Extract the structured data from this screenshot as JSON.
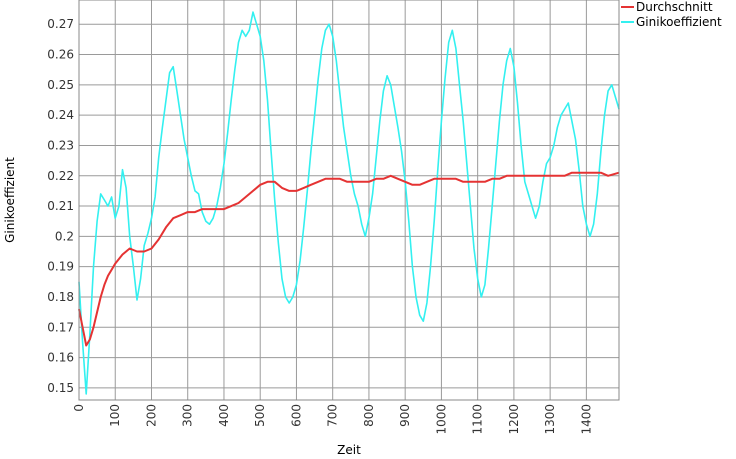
{
  "chart_data": {
    "type": "line",
    "title": "",
    "xlabel": "Zeit",
    "ylabel": "Ginikoeffizient",
    "xlim": [
      0,
      1490
    ],
    "ylim": [
      0.146,
      0.278
    ],
    "grid": true,
    "legend_position": "top-right",
    "x_ticks": [
      "0",
      "100",
      "200",
      "300",
      "400",
      "500",
      "600",
      "700",
      "800",
      "900",
      "1000",
      "1100",
      "1200",
      "1300",
      "1400"
    ],
    "y_ticks": [
      "0.15",
      "0.16",
      "0.17",
      "0.18",
      "0.19",
      "0.2",
      "0.21",
      "0.22",
      "0.23",
      "0.24",
      "0.25",
      "0.26",
      "0.27"
    ],
    "series": [
      {
        "name": "Durchschnitt",
        "color": "#e53333",
        "x": [
          0,
          10,
          20,
          30,
          40,
          50,
          60,
          70,
          80,
          90,
          100,
          120,
          140,
          160,
          180,
          200,
          220,
          240,
          260,
          280,
          300,
          320,
          340,
          360,
          380,
          400,
          420,
          440,
          460,
          480,
          500,
          520,
          540,
          560,
          580,
          600,
          620,
          640,
          660,
          680,
          700,
          720,
          740,
          760,
          780,
          800,
          820,
          840,
          860,
          880,
          900,
          920,
          940,
          960,
          980,
          1000,
          1020,
          1040,
          1060,
          1080,
          1100,
          1120,
          1140,
          1160,
          1180,
          1200,
          1220,
          1240,
          1260,
          1280,
          1300,
          1320,
          1340,
          1360,
          1380,
          1400,
          1420,
          1440,
          1460,
          1490
        ],
        "y": [
          0.176,
          0.17,
          0.164,
          0.166,
          0.17,
          0.175,
          0.18,
          0.184,
          0.187,
          0.189,
          0.191,
          0.194,
          0.196,
          0.195,
          0.195,
          0.196,
          0.199,
          0.203,
          0.206,
          0.207,
          0.208,
          0.208,
          0.209,
          0.209,
          0.209,
          0.209,
          0.21,
          0.211,
          0.213,
          0.215,
          0.217,
          0.218,
          0.218,
          0.216,
          0.215,
          0.215,
          0.216,
          0.217,
          0.218,
          0.219,
          0.219,
          0.219,
          0.218,
          0.218,
          0.218,
          0.218,
          0.219,
          0.219,
          0.22,
          0.219,
          0.218,
          0.217,
          0.217,
          0.218,
          0.219,
          0.219,
          0.219,
          0.219,
          0.218,
          0.218,
          0.218,
          0.218,
          0.219,
          0.219,
          0.22,
          0.22,
          0.22,
          0.22,
          0.22,
          0.22,
          0.22,
          0.22,
          0.22,
          0.221,
          0.221,
          0.221,
          0.221,
          0.221,
          0.22,
          0.221
        ]
      },
      {
        "name": "Ginikoeffizient",
        "color": "#33f0f0",
        "x": [
          0,
          10,
          20,
          30,
          40,
          50,
          60,
          70,
          80,
          90,
          100,
          110,
          120,
          130,
          140,
          150,
          160,
          170,
          180,
          190,
          200,
          210,
          220,
          230,
          240,
          250,
          260,
          270,
          280,
          290,
          300,
          310,
          320,
          330,
          340,
          350,
          360,
          370,
          380,
          390,
          400,
          410,
          420,
          430,
          440,
          450,
          460,
          470,
          480,
          490,
          500,
          510,
          520,
          530,
          540,
          550,
          560,
          570,
          580,
          590,
          600,
          610,
          620,
          630,
          640,
          650,
          660,
          670,
          680,
          690,
          700,
          710,
          720,
          730,
          740,
          750,
          760,
          770,
          780,
          790,
          800,
          810,
          820,
          830,
          840,
          850,
          860,
          870,
          880,
          890,
          900,
          910,
          920,
          930,
          940,
          950,
          960,
          970,
          980,
          990,
          1000,
          1010,
          1020,
          1030,
          1040,
          1050,
          1060,
          1070,
          1080,
          1090,
          1100,
          1110,
          1120,
          1130,
          1140,
          1150,
          1160,
          1170,
          1180,
          1190,
          1200,
          1210,
          1220,
          1230,
          1240,
          1250,
          1260,
          1270,
          1280,
          1290,
          1300,
          1310,
          1320,
          1330,
          1340,
          1350,
          1360,
          1370,
          1380,
          1390,
          1400,
          1410,
          1420,
          1430,
          1440,
          1450,
          1460,
          1470,
          1480,
          1490
        ],
        "y": [
          0.185,
          0.165,
          0.148,
          0.168,
          0.19,
          0.205,
          0.214,
          0.212,
          0.21,
          0.213,
          0.206,
          0.21,
          0.222,
          0.216,
          0.2,
          0.19,
          0.179,
          0.186,
          0.197,
          0.201,
          0.206,
          0.213,
          0.226,
          0.236,
          0.245,
          0.254,
          0.256,
          0.248,
          0.24,
          0.232,
          0.226,
          0.22,
          0.215,
          0.214,
          0.208,
          0.205,
          0.204,
          0.206,
          0.21,
          0.216,
          0.224,
          0.234,
          0.245,
          0.255,
          0.264,
          0.268,
          0.266,
          0.268,
          0.274,
          0.27,
          0.266,
          0.258,
          0.245,
          0.228,
          0.212,
          0.198,
          0.186,
          0.18,
          0.178,
          0.18,
          0.184,
          0.192,
          0.203,
          0.215,
          0.228,
          0.24,
          0.252,
          0.262,
          0.268,
          0.27,
          0.266,
          0.258,
          0.247,
          0.236,
          0.228,
          0.22,
          0.214,
          0.21,
          0.204,
          0.2,
          0.206,
          0.214,
          0.226,
          0.238,
          0.248,
          0.253,
          0.25,
          0.243,
          0.236,
          0.228,
          0.218,
          0.205,
          0.19,
          0.18,
          0.174,
          0.172,
          0.178,
          0.19,
          0.205,
          0.222,
          0.238,
          0.252,
          0.264,
          0.268,
          0.262,
          0.25,
          0.238,
          0.224,
          0.21,
          0.196,
          0.186,
          0.18,
          0.184,
          0.196,
          0.21,
          0.224,
          0.238,
          0.25,
          0.258,
          0.262,
          0.256,
          0.244,
          0.23,
          0.218,
          0.214,
          0.21,
          0.206,
          0.21,
          0.218,
          0.224,
          0.226,
          0.23,
          0.236,
          0.24,
          0.242,
          0.244,
          0.238,
          0.232,
          0.222,
          0.21,
          0.204,
          0.2,
          0.204,
          0.214,
          0.228,
          0.24,
          0.248,
          0.25,
          0.246,
          0.242
        ]
      }
    ]
  }
}
